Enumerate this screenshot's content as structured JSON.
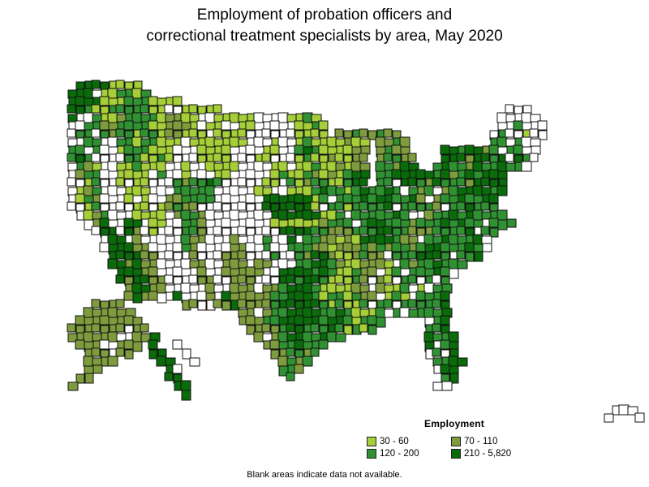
{
  "title": {
    "line1": "Employment of probation officers and",
    "line2": "correctional treatment specialists by area, May 2020"
  },
  "legend": {
    "title": "Employment",
    "items": [
      {
        "label": "30 - 60",
        "color": "#A5CE38"
      },
      {
        "label": "70 - 110",
        "color": "#7E9B3D"
      },
      {
        "label": "120 - 200",
        "color": "#2F9132"
      },
      {
        "label": "210 - 5,820",
        "color": "#0A6B0B"
      }
    ]
  },
  "note": "Blank areas indicate data not available.",
  "map": {
    "description": "Choropleth of U.S. areas shaded by employment range; white outlined areas have no data",
    "no_data_color": "#FFFFFF",
    "border_color": "#101010",
    "cell_codes": {
      ".": "empty",
      "w": "no-data",
      "a": "30 - 60",
      "b": "70 - 110",
      "c": "120 - 200",
      "d": "210 - 5,820"
    },
    "grid": [
      ".ddddaaaa",
      "dddwaaccac",
      "ddddaaacccaaaa",
      "ddcaacccccaawwaaaaa...................................www",
      "dwwcaabccccabbaawwaaaaawwwwaaca......................wwwww",
      "wwccbbccccaabbbawaawwaawwwwwaaca.....................wwcwww",
      "wccwcbccaccabbaaawaaaawwwwwwaaaa.bbcbbcbb...........wcwwaww",
      "wwccwwccaccaaawaaaaaaawwwawwacaaaabaa.bbcb..........ccwcww",
      "ccwcwwacccaaawwwaaaawwwwaawwcdcaaaabb.bcbb....ddcddbcwccww",
      "cdcwwwwccaacawwwaaaawwwaawwwacaabaabb.bccbb...dddbddcdwdcw",
      "wcbawwaacaaawwawwaaaawwwwaawaacaababb.ccbdd..cdccbdccdccw",
      "wbccwwaaaawcwwawwwaawwwwwacaacbabacdd.ccdddddcdbcdcddd",
      "wwacwwawaawwwcbccdcwwwwwaawcabccaacdd.ccwddcbdcccbdddd",
      "wabcwwwaaawwwcccccwwwwwaawwaaacdccacdccdcwcbcwbcddddcd",
      "wacbwwwawawwbbccccwwwwwwddddddacwcccdcddccdbwbccdccdd",
      "wwacwwwwaawabcbbwwwwwwwwddddddawccaccccdwccccbwccdccc",
      ".wabcwwwaaaawbccbwwwwwwwwddddddaacwcccccdcwwbccdcdcccc",
      "..wbdwwddwaawwccbwwwwwwwwaaaaaabcccwcddcccbcccdcdccwccc",
      "...wddwdbwawwwccbwwwwwwwwwddddccbbbcccddccbbbccccdwcc",
      "....wddwbwwwwwcbbwwwbwwwcwwdwccbbabaddddcbbwccdcccdw",
      "....wdddbbwwwwcbwwwwbbwwcwwcccbbabbbcbcbccbcddcccdcw",
      ".....ddddbbwwwwbwwwbbbwwwcwwcbddbaabcbbwcccdddcwccd",
      ".....ddbdbbwwwwbbwwbbbwbbwwwccddcbaabbbawcbccdccc",
      "......dddbbwwwwwbwwbbbbbwwddddcdcaacbbwacwcccdcw",
      "......dbddbbwwwwbbwwbbbwwwddcddcaaacbwbawccwcwc",
      ".......bddbbwwwwwbwwbbbwbbcdddcaaaabbwbaacwawcc",
      ".......bdbbwwdwwwbwdbbbbbccdddcaccacbbwacawcccd",
      "...bbbb.......bbwwbbdbbbbcdddddcacaacwccwcccccd",
      "..bbbbbb.............bbwbccddddccdcaaacwcwccccd",
      ".bbbbbbbb............bbbccdddddcddcaccc.....wcd",
      "bbbbbbbwbb............bbbbcddcccdcacac......ccd",
      "bbbbbbwwbbd............bwbcddccdcc..........dccd",
      ".bbbwwbbb.d..w..........bbccdccc............dwcd",
      "..bbbwbb..dd..w..........bbccbc.............wcwd",
      "..bbbb.....dd..w..........bcbc...............ccdd",
      "..bb........dw............ccb................wdd",
      ".bb.........dd.............c..................cd",
      "b............dd..............................ww",
      "..............d",
      "",
      "...................................................................www",
      "..................................................................w...w"
    ]
  }
}
